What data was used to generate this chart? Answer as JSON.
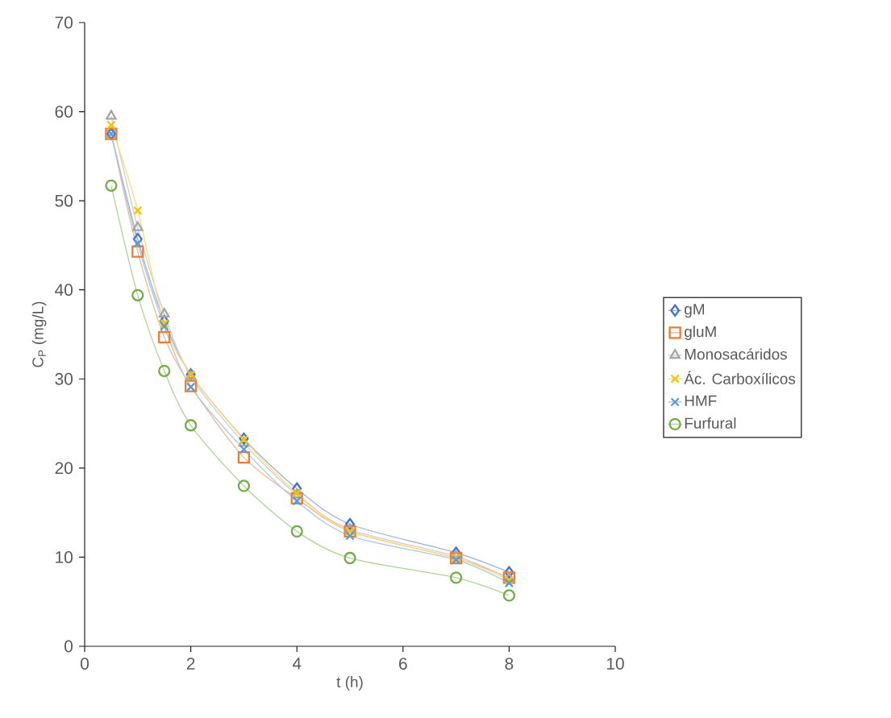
{
  "chart_data": {
    "type": "line",
    "xlabel": "t (h)",
    "ylabel": "C$_{P}$ (mg/L)",
    "x": [
      0.5,
      1,
      1.5,
      2,
      3,
      4,
      5,
      7,
      8
    ],
    "xlim": [
      0,
      10
    ],
    "xticks": [
      0,
      2,
      4,
      6,
      8,
      10
    ],
    "ylim": [
      0,
      70
    ],
    "yticks": [
      0,
      10,
      20,
      30,
      40,
      50,
      60,
      70
    ],
    "legend": "right",
    "line_style": "solid",
    "series": [
      {
        "name": "gM",
        "color": "#4472c4",
        "marker": "diamond",
        "values": [
          57.5,
          45.7,
          36.5,
          30.5,
          23.3,
          17.7,
          13.7,
          10.5,
          8.3
        ]
      },
      {
        "name": "gluM",
        "color": "#ed7d31",
        "marker": "square",
        "values": [
          57.5,
          44.3,
          34.7,
          29.2,
          21.2,
          16.6,
          12.9,
          9.9,
          7.7
        ]
      },
      {
        "name": "Monosacáridos",
        "color": "#a5a5a5",
        "marker": "triangle",
        "values": [
          59.5,
          47.0,
          37.3,
          30.3,
          22.8,
          17.0,
          13.1,
          10.1,
          7.6
        ]
      },
      {
        "name": "Ác. Carboxílicos",
        "color": "#ffc000",
        "marker": "cross",
        "values": [
          58.5,
          48.9,
          36.2,
          30.5,
          23.2,
          17.2,
          12.9,
          9.9,
          7.4
        ]
      },
      {
        "name": "HMF",
        "color": "#5b9bd5",
        "marker": "cross",
        "values": [
          57.5,
          45.2,
          35.9,
          29.1,
          22.1,
          16.3,
          12.4,
          9.7,
          7.1
        ]
      },
      {
        "name": "Furfural",
        "color": "#70ad47",
        "marker": "circle",
        "values": [
          51.7,
          39.4,
          30.9,
          24.8,
          18.0,
          12.9,
          9.9,
          7.7,
          5.7
        ]
      }
    ]
  }
}
